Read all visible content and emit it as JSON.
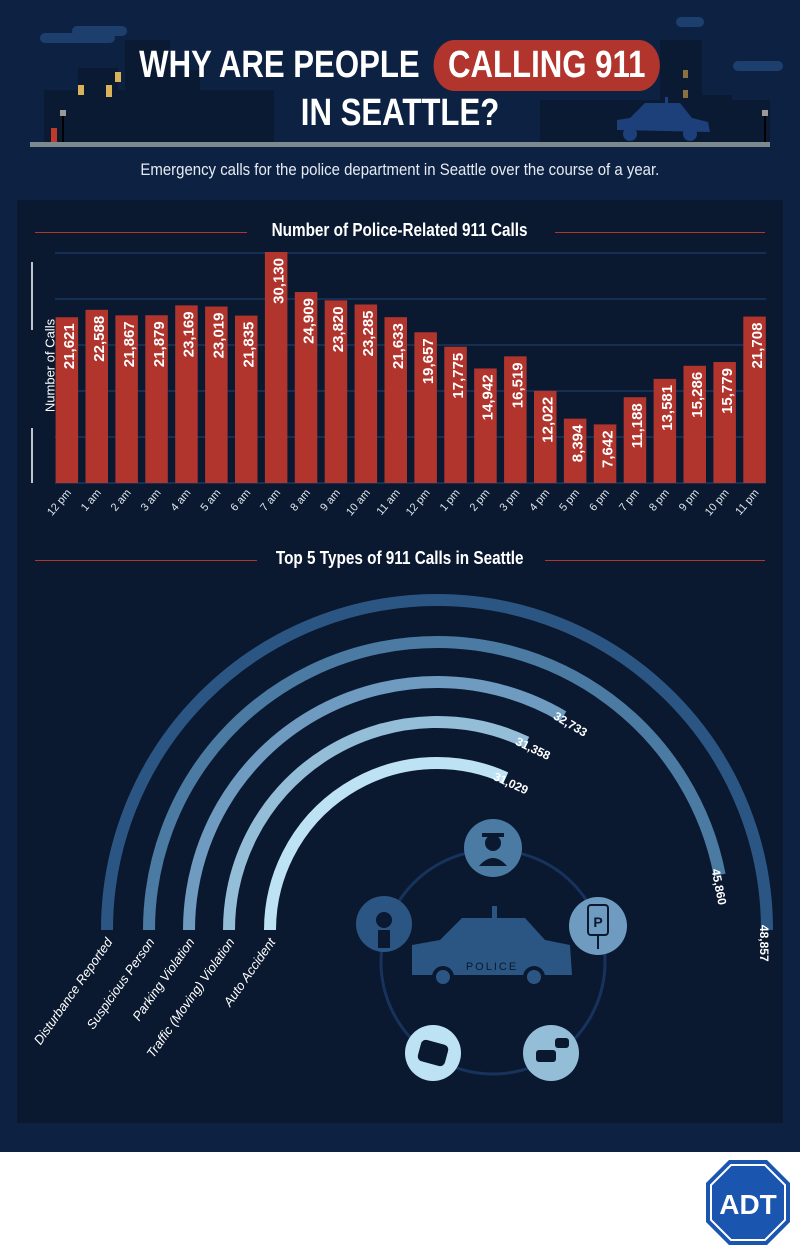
{
  "header": {
    "title_part1": "WHY ARE PEOPLE",
    "title_highlight": "CALLING 911",
    "title_part2": "IN SEATTLE?",
    "subtitle": "Emergency calls for the police department in Seattle over the course of a year.",
    "police_car_text": "POLICE"
  },
  "colors": {
    "bg": "#0d2243",
    "panel": "#0a1930",
    "bar": "#b1352d",
    "accent": "#b1352d",
    "grid": "#1f4378"
  },
  "chart_data": [
    {
      "type": "bar",
      "title": "Number of Police-Related 911 Calls",
      "ylabel": "Number of Calls",
      "xlabel": "",
      "ylim": [
        0,
        30000
      ],
      "grid": true,
      "categories": [
        "12 pm",
        "1 am",
        "2 am",
        "3 am",
        "4 am",
        "5 am",
        "6 am",
        "7 am",
        "8 am",
        "9 am",
        "10 am",
        "11 am",
        "12 pm",
        "1 pm",
        "2 pm",
        "3 pm",
        "4 pm",
        "5 pm",
        "6 pm",
        "7 pm",
        "8 pm",
        "9 pm",
        "10 pm",
        "11 pm"
      ],
      "values": [
        21621,
        22588,
        21867,
        21879,
        23169,
        23019,
        21835,
        30130,
        24909,
        23820,
        23285,
        21633,
        19657,
        17775,
        14942,
        16519,
        12022,
        8394,
        7642,
        11188,
        13581,
        15286,
        15779,
        21708
      ],
      "value_labels": [
        "21,621",
        "22,588",
        "21,867",
        "21,879",
        "23,169",
        "23,019",
        "21,835",
        "30,130",
        "24,909",
        "23,820",
        "23,285",
        "21,633",
        "19,657",
        "17,775",
        "14,942",
        "16,519",
        "12,022",
        "8,394",
        "7,642",
        "11,188",
        "13,581",
        "15,286",
        "15,779",
        "21,708"
      ]
    },
    {
      "type": "radial-bar",
      "title": "Top 5 Types of 911 Calls in Seattle",
      "categories": [
        "Disturbance Reported",
        "Suspicious Person",
        "Parking Violation",
        "Traffic (Moving) Violation",
        "Auto Accident"
      ],
      "values": [
        48857,
        45860,
        32733,
        31358,
        31029
      ],
      "value_labels": [
        "48,857",
        "45,860",
        "32,733",
        "31,358",
        "31,029"
      ],
      "colors": [
        "#2b5684",
        "#4b7aa3",
        "#6f9bc0",
        "#94bdd8",
        "#bde2f3"
      ]
    }
  ],
  "footer": {
    "logo": "ADT"
  }
}
